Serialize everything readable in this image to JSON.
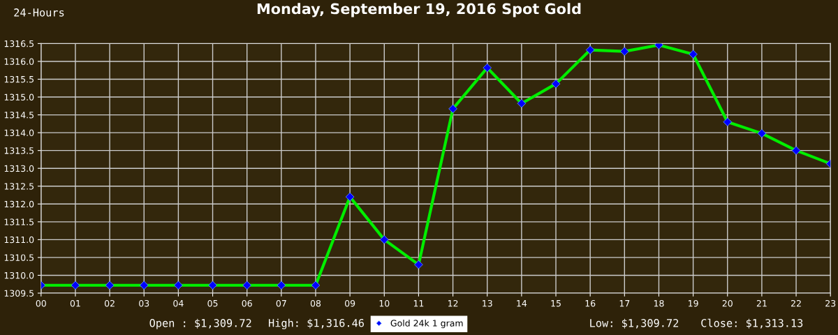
{
  "chart_data": {
    "type": "line",
    "title": "Monday, September 19, 2016 Spot Gold",
    "annotations": [
      "24-Hours",
      "Open : $1,309.72",
      "High: $1,316.46",
      "Low: $1,309.72",
      "Close: $1,313.13"
    ],
    "categories": [
      "00",
      "01",
      "02",
      "03",
      "04",
      "05",
      "06",
      "07",
      "08",
      "09",
      "10",
      "11",
      "12",
      "13",
      "14",
      "15",
      "16",
      "17",
      "18",
      "19",
      "20",
      "21",
      "22",
      "23"
    ],
    "series": [
      {
        "name": "Gold 24k 1 gram",
        "color": "#00ee00",
        "values": [
          1309.72,
          1309.72,
          1309.72,
          1309.72,
          1309.72,
          1309.72,
          1309.72,
          1309.72,
          1309.72,
          1312.2,
          1311.0,
          1310.3,
          1314.67,
          1315.82,
          1314.82,
          1315.37,
          1316.32,
          1316.28,
          1316.46,
          1316.2,
          1314.3,
          1313.98,
          1313.5,
          1313.13
        ]
      }
    ],
    "ylim": [
      1309.5,
      1316.5
    ],
    "yticks": [
      {
        "value": 1309.5,
        "label": "1309.5"
      },
      {
        "value": 1310,
        "label": "1310.0"
      },
      {
        "value": 1310.5,
        "label": "1310.5"
      },
      {
        "value": 1311,
        "label": "1311.0"
      },
      {
        "value": 1311.5,
        "label": "1311.5"
      },
      {
        "value": 1312,
        "label": "1312.0"
      },
      {
        "value": 1312.5,
        "label": "1312.5"
      },
      {
        "value": 1313,
        "label": "1313.0"
      },
      {
        "value": 1313.5,
        "label": "1313.5"
      },
      {
        "value": 1314,
        "label": "1314.0"
      },
      {
        "value": 1314.5,
        "label": "1314.5"
      },
      {
        "value": 1315,
        "label": "1315.0"
      },
      {
        "value": 1315.5,
        "label": "1315.5"
      },
      {
        "value": 1316,
        "label": "1316.0"
      },
      {
        "value": 1316.5,
        "label": "1316.5"
      }
    ],
    "grid": true,
    "legend": "bottom",
    "marker": "diamond",
    "line_style": "solid"
  }
}
